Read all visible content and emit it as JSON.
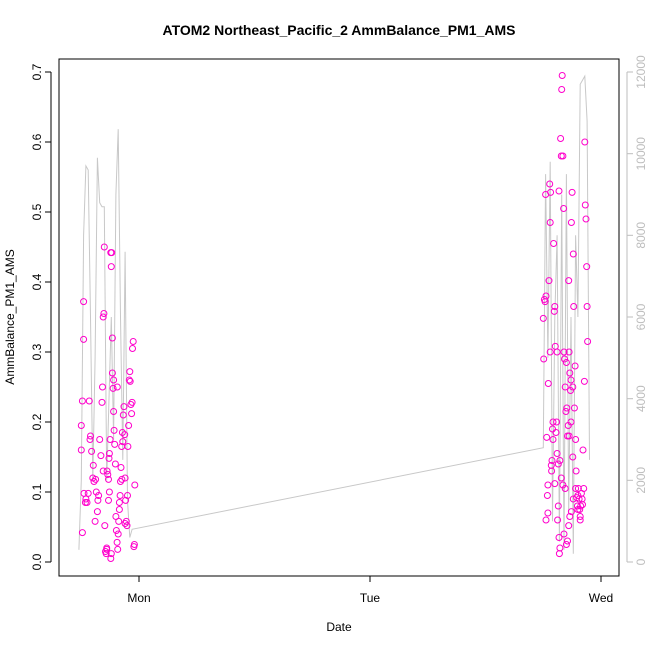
{
  "chart_data": {
    "type": "scatter",
    "title": "ATOM2 Northeast_Pacific_2 AmmBalance_PM1_AMS",
    "xlabel": "Date",
    "ylabel": "AmmBalance_PM1_AMS",
    "x_ticks": [
      "Mon",
      "Tue",
      "Wed"
    ],
    "y_ticks": [
      "0.0",
      "0.1",
      "0.2",
      "0.3",
      "0.4",
      "0.5",
      "0.6",
      "0.7"
    ],
    "y2_ticks": [
      "0",
      "2000",
      "4000",
      "6000",
      "8000",
      "10000",
      "12000"
    ],
    "ylim": [
      0,
      0.7
    ],
    "y2lim": [
      0,
      12000
    ],
    "x_axis_days": [
      "Mon",
      "Tue",
      "Wed"
    ],
    "point_color": "#ff00cc",
    "secondary_line_color": "#c8c8c8",
    "right_axis_color": "#bdbdbd",
    "series": [
      {
        "type": "scatter",
        "points": [
          [
            -0.25,
            0.195
          ],
          [
            -0.25,
            0.16
          ],
          [
            -0.245,
            0.23
          ],
          [
            -0.24,
            0.318
          ],
          [
            -0.24,
            0.372
          ],
          [
            -0.245,
            0.042
          ],
          [
            -0.238,
            0.098
          ],
          [
            -0.232,
            0.085
          ],
          [
            -0.23,
            0.09
          ],
          [
            -0.225,
            0.085
          ],
          [
            -0.22,
            0.098
          ],
          [
            -0.215,
            0.23
          ],
          [
            -0.212,
            0.175
          ],
          [
            -0.21,
            0.18
          ],
          [
            -0.205,
            0.158
          ],
          [
            -0.2,
            0.12
          ],
          [
            -0.198,
            0.138
          ],
          [
            -0.195,
            0.115
          ],
          [
            -0.19,
            0.058
          ],
          [
            -0.188,
            0.118
          ],
          [
            -0.185,
            0.1
          ],
          [
            -0.18,
            0.072
          ],
          [
            -0.178,
            0.088
          ],
          [
            -0.175,
            0.095
          ],
          [
            -0.17,
            0.175
          ],
          [
            -0.165,
            0.152
          ],
          [
            -0.16,
            0.228
          ],
          [
            -0.158,
            0.25
          ],
          [
            -0.155,
            0.35
          ],
          [
            -0.152,
            0.355
          ],
          [
            -0.15,
            0.45
          ],
          [
            -0.148,
            0.052
          ],
          [
            -0.145,
            0.015
          ],
          [
            -0.142,
            0.012
          ],
          [
            -0.14,
            0.02
          ],
          [
            -0.138,
            0.13
          ],
          [
            -0.135,
            0.125
          ],
          [
            -0.132,
            0.118
          ],
          [
            -0.13,
            0.148
          ],
          [
            -0.128,
            0.155
          ],
          [
            -0.125,
            0.175
          ],
          [
            -0.122,
            0.442
          ],
          [
            -0.12,
            0.422
          ],
          [
            -0.118,
            0.442
          ],
          [
            -0.115,
            0.32
          ],
          [
            -0.112,
            0.248
          ],
          [
            -0.11,
            0.215
          ],
          [
            -0.108,
            0.188
          ],
          [
            -0.105,
            0.168
          ],
          [
            -0.102,
            0.14
          ],
          [
            -0.1,
            0.065
          ],
          [
            -0.098,
            0.045
          ],
          [
            -0.095,
            0.028
          ],
          [
            -0.092,
            0.018
          ],
          [
            -0.09,
            0.04
          ],
          [
            -0.088,
            0.058
          ],
          [
            -0.085,
            0.075
          ],
          [
            -0.082,
            0.095
          ],
          [
            -0.08,
            0.115
          ],
          [
            -0.078,
            0.135
          ],
          [
            -0.075,
            0.165
          ],
          [
            -0.072,
            0.185
          ],
          [
            -0.07,
            0.172
          ],
          [
            -0.068,
            0.21
          ],
          [
            -0.065,
            0.222
          ],
          [
            -0.062,
            0.182
          ],
          [
            -0.06,
            0.12
          ],
          [
            -0.058,
            0.088
          ],
          [
            -0.055,
            0.058
          ],
          [
            -0.052,
            0.052
          ],
          [
            -0.05,
            0.095
          ],
          [
            -0.048,
            0.165
          ],
          [
            -0.045,
            0.195
          ],
          [
            -0.042,
            0.26
          ],
          [
            -0.04,
            0.272
          ],
          [
            -0.038,
            0.258
          ],
          [
            -0.035,
            0.225
          ],
          [
            -0.032,
            0.212
          ],
          [
            -0.03,
            0.228
          ],
          [
            -0.028,
            0.305
          ],
          [
            -0.025,
            0.315
          ],
          [
            -0.022,
            0.022
          ],
          [
            -0.02,
            0.025
          ],
          [
            -0.018,
            0.11
          ],
          [
            -0.11,
            0.26
          ],
          [
            -0.115,
            0.27
          ],
          [
            -0.14,
            0.018
          ],
          [
            -0.128,
            0.1
          ],
          [
            -0.132,
            0.088
          ],
          [
            -0.06,
            0.055
          ],
          [
            -0.074,
            0.118
          ],
          [
            -0.094,
            0.25
          ],
          [
            -0.12,
            0.012
          ],
          [
            -0.122,
            0.005
          ],
          [
            -0.085,
            0.085
          ],
          [
            -0.155,
            0.13
          ],
          [
            1.75,
            0.348
          ],
          [
            1.752,
            0.29
          ],
          [
            1.755,
            0.375
          ],
          [
            1.758,
            0.372
          ],
          [
            1.76,
            0.525
          ],
          [
            1.762,
            0.38
          ],
          [
            1.765,
            0.178
          ],
          [
            1.768,
            0.095
          ],
          [
            1.77,
            0.11
          ],
          [
            1.772,
            0.255
          ],
          [
            1.775,
            0.402
          ],
          [
            1.778,
            0.54
          ],
          [
            1.78,
            0.485
          ],
          [
            1.782,
            0.528
          ],
          [
            1.785,
            0.138
          ],
          [
            1.788,
            0.145
          ],
          [
            1.79,
            0.19
          ],
          [
            1.792,
            0.2
          ],
          [
            1.795,
            0.455
          ],
          [
            1.798,
            0.358
          ],
          [
            1.8,
            0.365
          ],
          [
            1.802,
            0.308
          ],
          [
            1.805,
            0.185
          ],
          [
            1.808,
            0.2
          ],
          [
            1.81,
            0.3
          ],
          [
            1.812,
            0.06
          ],
          [
            1.815,
            0.08
          ],
          [
            1.818,
            0.035
          ],
          [
            1.82,
            0.012
          ],
          [
            1.822,
            0.02
          ],
          [
            1.825,
            0.605
          ],
          [
            1.828,
            0.58
          ],
          [
            1.83,
            0.675
          ],
          [
            1.832,
            0.695
          ],
          [
            1.835,
            0.58
          ],
          [
            1.838,
            0.505
          ],
          [
            1.84,
            0.3
          ],
          [
            1.842,
            0.29
          ],
          [
            1.845,
            0.25
          ],
          [
            1.848,
            0.215
          ],
          [
            1.85,
            0.285
          ],
          [
            1.852,
            0.22
          ],
          [
            1.855,
            0.18
          ],
          [
            1.858,
            0.195
          ],
          [
            1.86,
            0.402
          ],
          [
            1.862,
            0.3
          ],
          [
            1.865,
            0.27
          ],
          [
            1.868,
            0.245
          ],
          [
            1.87,
            0.26
          ],
          [
            1.872,
            0.485
          ],
          [
            1.875,
            0.528
          ],
          [
            1.878,
            0.25
          ],
          [
            1.88,
            0.44
          ],
          [
            1.882,
            0.365
          ],
          [
            1.885,
            0.22
          ],
          [
            1.888,
            0.28
          ],
          [
            1.89,
            0.175
          ],
          [
            1.892,
            0.13
          ],
          [
            1.895,
            0.092
          ],
          [
            1.898,
            0.08
          ],
          [
            1.9,
            0.095
          ],
          [
            1.902,
            0.105
          ],
          [
            1.905,
            0.09
          ],
          [
            1.908,
            0.075
          ],
          [
            1.91,
            0.06
          ],
          [
            1.912,
            0.08
          ],
          [
            1.915,
            0.098
          ],
          [
            1.918,
            0.09
          ],
          [
            1.92,
            0.082
          ],
          [
            1.922,
            0.16
          ],
          [
            1.925,
            0.105
          ],
          [
            1.928,
            0.258
          ],
          [
            1.93,
            0.6
          ],
          [
            1.932,
            0.51
          ],
          [
            1.935,
            0.49
          ],
          [
            1.938,
            0.422
          ],
          [
            1.94,
            0.365
          ],
          [
            1.942,
            0.315
          ],
          [
            1.762,
            0.06
          ],
          [
            1.77,
            0.07
          ],
          [
            1.78,
            0.3
          ],
          [
            1.786,
            0.13
          ],
          [
            1.792,
            0.175
          ],
          [
            1.8,
            0.112
          ],
          [
            1.81,
            0.155
          ],
          [
            1.815,
            0.14
          ],
          [
            1.828,
            0.12
          ],
          [
            1.835,
            0.11
          ],
          [
            1.845,
            0.105
          ],
          [
            1.855,
            0.03
          ],
          [
            1.86,
            0.052
          ],
          [
            1.865,
            0.065
          ],
          [
            1.872,
            0.072
          ],
          [
            1.88,
            0.09
          ],
          [
            1.89,
            0.105
          ],
          [
            1.9,
            0.075
          ],
          [
            1.91,
            0.065
          ],
          [
            1.84,
            0.04
          ],
          [
            1.85,
            0.025
          ],
          [
            1.87,
            0.2
          ],
          [
            1.878,
            0.15
          ],
          [
            1.862,
            0.18
          ],
          [
            1.818,
            0.53
          ],
          [
            1.822,
            0.145
          ]
        ]
      },
      {
        "type": "line",
        "axis": "right",
        "points": [
          [
            -0.26,
            300
          ],
          [
            -0.25,
            2000
          ],
          [
            -0.24,
            8000
          ],
          [
            -0.23,
            9700
          ],
          [
            -0.22,
            9600
          ],
          [
            -0.21,
            6000
          ],
          [
            -0.2,
            2000
          ],
          [
            -0.19,
            5000
          ],
          [
            -0.18,
            9900
          ],
          [
            -0.17,
            8800
          ],
          [
            -0.16,
            8700
          ],
          [
            -0.15,
            8700
          ],
          [
            -0.14,
            2000
          ],
          [
            -0.13,
            4000
          ],
          [
            -0.12,
            6000
          ],
          [
            -0.11,
            3000
          ],
          [
            -0.1,
            9000
          ],
          [
            -0.09,
            10600
          ],
          [
            -0.08,
            6000
          ],
          [
            -0.07,
            2500
          ],
          [
            -0.06,
            7600
          ],
          [
            -0.05,
            1500
          ],
          [
            -0.04,
            600
          ],
          [
            -0.03,
            800
          ],
          [
            1.75,
            2800
          ],
          [
            1.76,
            9500
          ],
          [
            1.77,
            5000
          ],
          [
            1.78,
            9800
          ],
          [
            1.79,
            1000
          ],
          [
            1.8,
            6000
          ],
          [
            1.81,
            8000
          ],
          [
            1.82,
            500
          ],
          [
            1.83,
            9000
          ],
          [
            1.84,
            300
          ],
          [
            1.85,
            9500
          ],
          [
            1.86,
            1200
          ],
          [
            1.87,
            6000
          ],
          [
            1.88,
            200
          ],
          [
            1.89,
            8000
          ],
          [
            1.9,
            6000
          ],
          [
            1.91,
            11700
          ],
          [
            1.92,
            11800
          ],
          [
            1.93,
            11900
          ],
          [
            1.94,
            10800
          ],
          [
            1.95,
            2500
          ]
        ]
      }
    ]
  }
}
